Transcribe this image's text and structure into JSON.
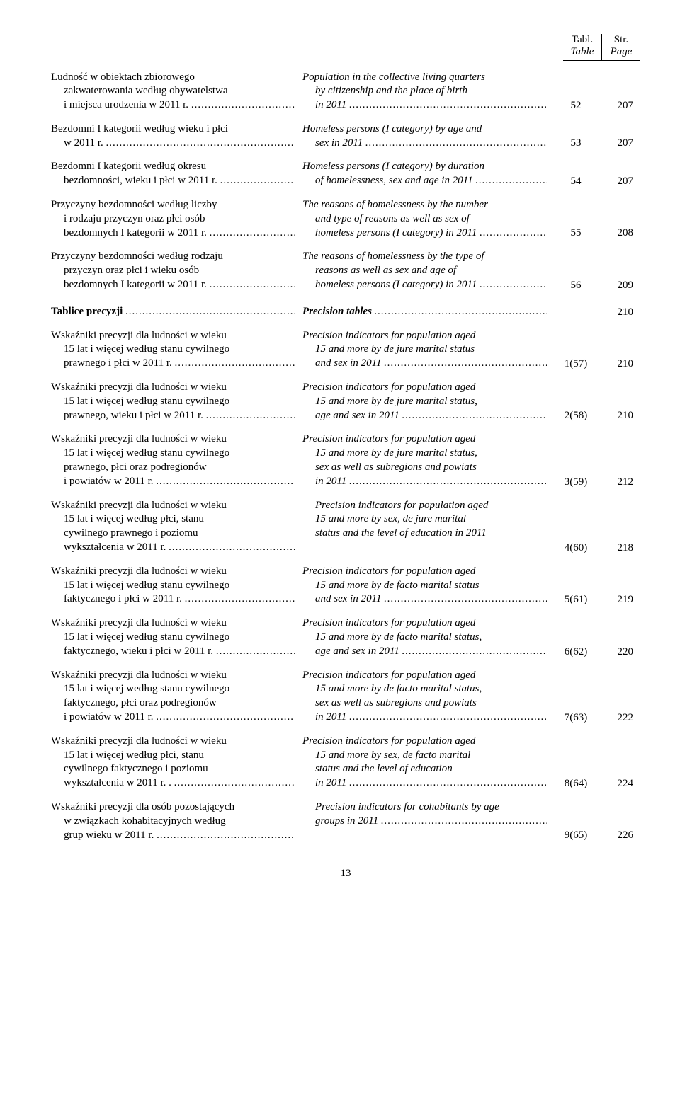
{
  "header": {
    "col1_top": "Tabl.",
    "col1_sub": "Table",
    "col2_top": "Str.",
    "col2_sub": "Page"
  },
  "rows": [
    {
      "pl_lines": [
        "Ludność w obiektach zbiorowego",
        "zakwaterowania według obywatelstwa",
        "i miejsca urodzenia w 2011 r."
      ],
      "en_lines": [
        "Population in the collective living quarters",
        "by citizenship and the place of birth",
        "in 2011"
      ],
      "tbl": "52",
      "page": "207"
    },
    {
      "pl_lines": [
        "Bezdomni I kategorii według wieku i płci",
        "w 2011 r."
      ],
      "en_lines": [
        "Homeless persons (I category) by age and",
        "sex in 2011"
      ],
      "tbl": "53",
      "page": "207"
    },
    {
      "pl_lines": [
        "Bezdomni I kategorii według okresu",
        "bezdomności, wieku i płci w 2011 r."
      ],
      "en_lines": [
        "Homeless persons (I category) by duration",
        "of homelessness, sex and age in 2011"
      ],
      "tbl": "54",
      "page": "207"
    },
    {
      "pl_lines": [
        "Przyczyny bezdomności według liczby",
        "i rodzaju przyczyn oraz płci osób",
        "bezdomnych I kategorii w 2011 r."
      ],
      "en_lines": [
        "The reasons of homelessness by the number",
        "and type of reasons as well as sex of",
        "homeless persons (I category) in 2011"
      ],
      "tbl": "55",
      "page": "208"
    },
    {
      "pl_lines": [
        "Przyczyny bezdomności według rodzaju",
        "przyczyn oraz płci i wieku osób",
        "bezdomnych I kategorii w 2011 r."
      ],
      "en_lines": [
        "The reasons of homelessness by the type of",
        "reasons as well as sex and age of",
        "homeless persons (I category) in 2011"
      ],
      "tbl": "56",
      "page": "209"
    },
    {
      "section": true,
      "pl_lines": [
        "Tablice precyzji"
      ],
      "en_lines": [
        "Precision tables"
      ],
      "tbl": "",
      "page": "210"
    },
    {
      "pl_lines": [
        "Wskaźniki precyzji dla ludności w wieku",
        "15 lat i więcej według stanu cywilnego",
        "prawnego i płci w 2011 r."
      ],
      "en_lines": [
        "Precision indicators for population aged",
        "15 and more by de jure marital status",
        "and sex in 2011"
      ],
      "tbl": "1(57)",
      "page": "210"
    },
    {
      "pl_lines": [
        "Wskaźniki precyzji dla ludności w wieku",
        "15 lat i więcej według stanu cywilnego",
        "prawnego, wieku i płci w 2011 r."
      ],
      "en_lines": [
        "Precision indicators for population aged",
        "15 and more by de jure marital status,",
        "age and sex in 2011"
      ],
      "tbl": "2(58)",
      "page": "210"
    },
    {
      "pl_lines": [
        "Wskaźniki precyzji dla ludności w wieku",
        "15 lat i więcej według stanu cywilnego",
        "prawnego, płci oraz podregionów",
        "i powiatów w 2011 r."
      ],
      "en_lines": [
        "Precision indicators for population aged",
        "15 and more by de jure marital status,",
        "sex as well as subregions and powiats",
        "in 2011"
      ],
      "tbl": "3(59)",
      "page": "212"
    },
    {
      "pl_lines": [
        "Wskaźniki precyzji dla ludności w wieku",
        "15 lat i więcej według płci, stanu",
        "cywilnego prawnego i poziomu",
        "wykształcenia w 2011 r."
      ],
      "en_lines": [
        "",
        "Precision indicators for population aged",
        "15 and more by sex, de jure marital",
        "status and the level of education in 2011"
      ],
      "tbl": "4(60)",
      "page": "218",
      "en_no_dots_last": true
    },
    {
      "pl_lines": [
        "Wskaźniki precyzji dla ludności w wieku",
        "15 lat i więcej według stanu cywilnego",
        "faktycznego i płci w 2011 r."
      ],
      "en_lines": [
        "Precision indicators for population aged",
        "15 and more by de facto marital status",
        "and sex in 2011"
      ],
      "tbl": "5(61)",
      "page": "219"
    },
    {
      "pl_lines": [
        "Wskaźniki precyzji dla ludności w wieku",
        "15 lat i więcej według stanu cywilnego",
        "faktycznego, wieku i płci w 2011 r."
      ],
      "en_lines": [
        "Precision indicators for population aged",
        "15 and more by de facto marital status,",
        "age and sex in 2011"
      ],
      "tbl": "6(62)",
      "page": "220"
    },
    {
      "pl_lines": [
        "Wskaźniki precyzji dla ludności w wieku",
        "15 lat i więcej według stanu cywilnego",
        "faktycznego, płci oraz podregionów",
        "i powiatów w 2011 r."
      ],
      "en_lines": [
        "Precision indicators for population aged",
        "15 and more by de facto marital status,",
        "sex as well as subregions and powiats",
        "in 2011"
      ],
      "tbl": "7(63)",
      "page": "222"
    },
    {
      "pl_lines": [
        "Wskaźniki precyzji dla ludności w wieku",
        "15 lat i więcej według płci, stanu",
        "cywilnego faktycznego i poziomu",
        "wykształcenia w 2011 r. ."
      ],
      "en_lines": [
        "Precision indicators for population aged",
        "15 and more by sex, de facto marital",
        "status and the level of education",
        "in 2011"
      ],
      "tbl": "8(64)",
      "page": "224"
    },
    {
      "pl_lines": [
        "Wskaźniki precyzji dla osób pozostających",
        "w związkach kohabitacyjnych według",
        "grup wieku w 2011 r."
      ],
      "en_lines": [
        "",
        "Precision indicators for cohabitants by age",
        "groups in 2011"
      ],
      "tbl": "9(65)",
      "page": "226"
    }
  ],
  "dots": ".................................................................",
  "page_number": "13"
}
